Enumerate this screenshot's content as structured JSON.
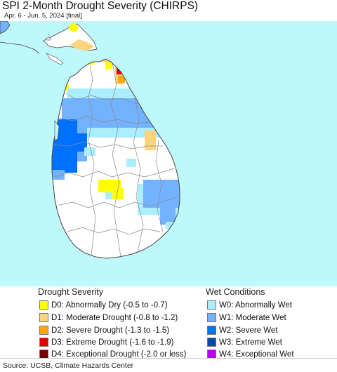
{
  "title": "SPI 2-Month Drought Severity (CHIRPS)",
  "subtitle": "Apr. 6 - Jun. 5, 2024 [final]",
  "colors": {
    "sea": "#bff8fb",
    "land": "#ffffff",
    "border": "#444444",
    "district": "#8a8a8a"
  },
  "legend": {
    "drought_title": "Drought Severity",
    "drought": [
      {
        "label": "D0: Abnormally Dry (-0.5 to -0.7)",
        "color": "#ffff00"
      },
      {
        "label": "D1: Moderate Drought (-0.8 to -1.2)",
        "color": "#fcd37f"
      },
      {
        "label": "D2: Severe Drought (-1.3 to -1.5)",
        "color": "#ffaa00"
      },
      {
        "label": "D3: Extreme Drought (-1.6 to -1.9)",
        "color": "#e60000"
      },
      {
        "label": "D4: Exceptional Drought (-2.0 or less)",
        "color": "#730000"
      }
    ],
    "wet_title": "Wet Conditions",
    "wet": [
      {
        "label": "W0: Abnormally Wet",
        "color": "#aaeeff"
      },
      {
        "label": "W1: Moderate Wet",
        "color": "#73b2ff"
      },
      {
        "label": "W2: Severe Wet",
        "color": "#0070ff"
      },
      {
        "label": "W3: Extreme Wet",
        "color": "#004da8"
      },
      {
        "label": "W4: Exceptional Wet",
        "color": "#b400ff"
      }
    ]
  },
  "source": "Source: UCSB, Climate Hazards Center"
}
